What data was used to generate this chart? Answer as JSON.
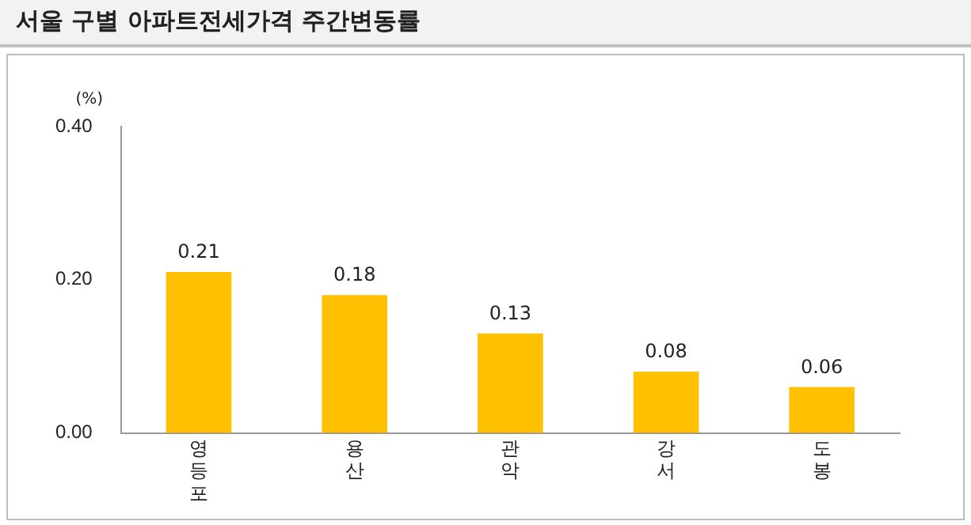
{
  "chart_data": {
    "type": "bar",
    "title": "서울 구별 아파트전세가격 주간변동률",
    "ylabel": "(%)",
    "categories": [
      "영등포",
      "용산",
      "관악",
      "강서",
      "도봉"
    ],
    "values": [
      0.21,
      0.18,
      0.13,
      0.08,
      0.06
    ],
    "color": "#ffc000",
    "ylim": [
      0,
      0.4
    ],
    "yticks": [
      {
        "value": 0,
        "label": "0.00"
      },
      {
        "value": 0.2,
        "label": "0.20"
      },
      {
        "value": 0.4,
        "label": "0.40"
      }
    ],
    "grid": false,
    "legend": false,
    "data_labels": true
  }
}
